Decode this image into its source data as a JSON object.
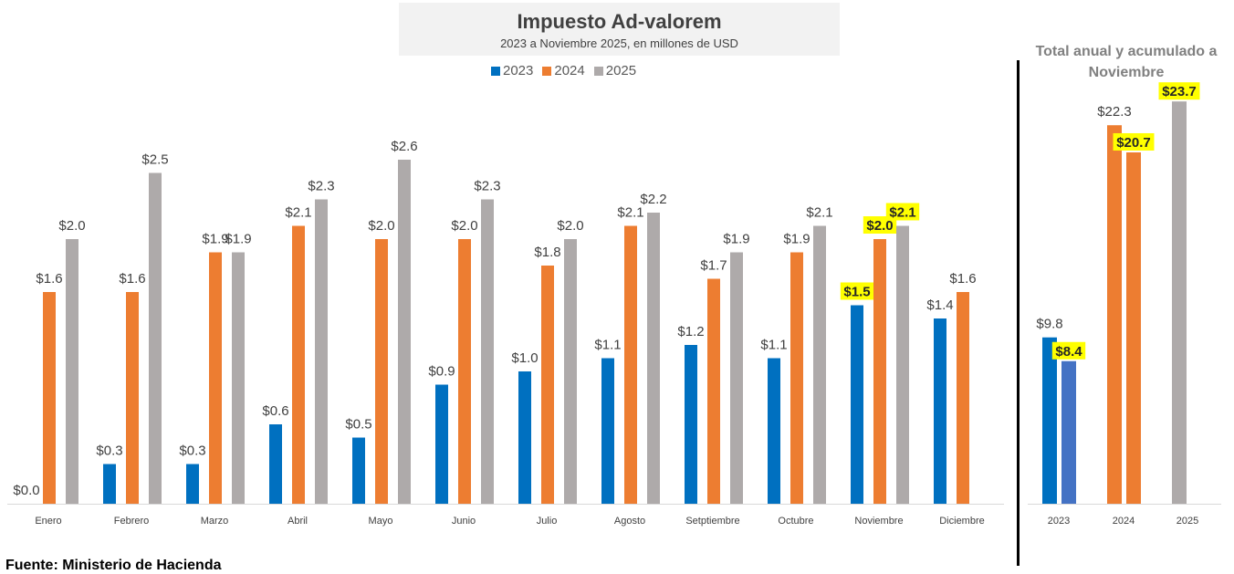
{
  "chart_data": [
    {
      "type": "bar",
      "title": "Impuesto Ad-valorem",
      "subtitle": "2023 a Noviembre 2025, en millones de USD",
      "categories": [
        "Enero",
        "Febrero",
        "Marzo",
        "Abril",
        "Mayo",
        "Junio",
        "Julio",
        "Agosto",
        "Setptiembre",
        "Octubre",
        "Noviembre",
        "Diciembre"
      ],
      "series": [
        {
          "name": "2023",
          "color": "#0070c0",
          "values": [
            0.0,
            0.3,
            0.3,
            0.6,
            0.5,
            0.9,
            1.0,
            1.1,
            1.2,
            1.1,
            1.5,
            1.4
          ]
        },
        {
          "name": "2024",
          "color": "#ed7d31",
          "values": [
            1.6,
            1.6,
            1.9,
            2.1,
            2.0,
            2.0,
            1.8,
            2.1,
            1.7,
            1.9,
            2.0,
            1.6
          ]
        },
        {
          "name": "2025",
          "color": "#aeaaaa",
          "values": [
            2.0,
            2.5,
            1.9,
            2.3,
            2.6,
            2.3,
            2.0,
            2.2,
            1.9,
            2.1,
            2.1,
            null
          ]
        }
      ],
      "highlighted_category": "Noviembre",
      "highlight_color": "#ffff00",
      "legend": "top",
      "grid": false,
      "label_prefix": "$"
    },
    {
      "type": "bar",
      "title": "Total anual y acumulado a Noviembre",
      "categories": [
        "2023",
        "2024",
        "2025"
      ],
      "bars": [
        {
          "category": "2023",
          "value": 9.8,
          "color": "#0070c0",
          "highlight": false
        },
        {
          "category": "2023",
          "value": 8.4,
          "color": "#4472c4",
          "highlight": true
        },
        {
          "category": "2024",
          "value": 22.3,
          "color": "#ed7d31",
          "highlight": false
        },
        {
          "category": "2024",
          "value": 20.7,
          "color": "#ed7d31",
          "highlight": true
        },
        {
          "category": "2025",
          "value": 23.7,
          "color": "#aeaaaa",
          "highlight": true
        }
      ],
      "label_prefix": "$"
    }
  ],
  "source": "Fuente: Ministerio de Hacienda"
}
